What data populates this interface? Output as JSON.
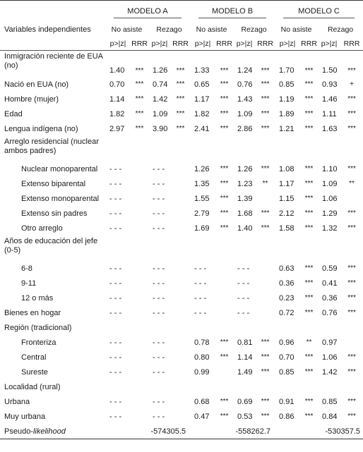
{
  "headers": {
    "models": [
      "MODELO A",
      "MODELO B",
      "MODELO C"
    ],
    "variables": "Variables independientes",
    "outcomes": [
      "No asiste",
      "Rezago"
    ],
    "stats": [
      "p>|z|",
      "RRR"
    ]
  },
  "rows": [
    {
      "label": "Inmigración reciente de EUA (no)",
      "type": "tall",
      "cells": [
        "1.40",
        "***",
        "1.26",
        "***",
        "1.33",
        "***",
        "1.24",
        "***",
        "1.70",
        "***",
        "1.50",
        "***"
      ]
    },
    {
      "label": "Nació en EUA (no)",
      "cells": [
        "0.70",
        "***",
        "0.74",
        "***",
        "0.65",
        "***",
        "0.76",
        "***",
        "0.85",
        "***",
        "0.93",
        "+"
      ]
    },
    {
      "label": "Hombre (mujer)",
      "cells": [
        "1.14",
        "***",
        "1.42",
        "***",
        "1.17",
        "***",
        "1.43",
        "***",
        "1.19",
        "***",
        "1.46",
        "***"
      ]
    },
    {
      "label": "Edad",
      "cells": [
        "1.82",
        "***",
        "1.09",
        "***",
        "1.82",
        "***",
        "1.09",
        "***",
        "1.89",
        "***",
        "1.11",
        "***"
      ]
    },
    {
      "label": "Lengua indígena (no)",
      "cells": [
        "2.97",
        "***",
        "3.90",
        "***",
        "2.41",
        "***",
        "2.86",
        "***",
        "1.21",
        "***",
        "1.63",
        "***"
      ]
    },
    {
      "label": "Arreglo residencial (nuclear ambos padres)",
      "type": "cat",
      "cells": []
    },
    {
      "label": "Nuclear monoparental",
      "indent": true,
      "cells": [
        "- - -",
        "",
        "- - -",
        "",
        "1.26",
        "***",
        "1.26",
        "***",
        "1.08",
        "***",
        "1.10",
        "***"
      ]
    },
    {
      "label": "Extenso biparental",
      "indent": true,
      "cells": [
        "- - -",
        "",
        "- - -",
        "",
        "1.35",
        "***",
        "1.23",
        "**",
        "1.17",
        "***",
        "1.09",
        "**"
      ]
    },
    {
      "label": "Extenso monoparental",
      "indent": true,
      "cells": [
        "- - -",
        "",
        "- - -",
        "",
        "1.55",
        "***",
        "1.39",
        "",
        "1.15",
        "***",
        "1.06",
        ""
      ]
    },
    {
      "label": "Extenso sin padres",
      "indent": true,
      "cells": [
        "- - -",
        "",
        "- - -",
        "",
        "2.79",
        "***",
        "1.68",
        "***",
        "2.12",
        "***",
        "1.29",
        "***"
      ]
    },
    {
      "label": "Otro arreglo",
      "indent": true,
      "cells": [
        "- - -",
        "",
        "- - -",
        "",
        "1.69",
        "***",
        "1.40",
        "***",
        "1.58",
        "***",
        "1.32",
        "***"
      ]
    },
    {
      "label": "Años de educación del jefe (0-5)",
      "type": "cat",
      "cells": []
    },
    {
      "label": "6-8",
      "indent": true,
      "cells": [
        "- - -",
        "",
        "- - -",
        "",
        "- - -",
        "",
        "- - -",
        "",
        "0.63",
        "***",
        "0.59",
        "***"
      ]
    },
    {
      "label": "9-11",
      "indent": true,
      "cells": [
        "- - -",
        "",
        "- - -",
        "",
        "- - -",
        "",
        "- - -",
        "",
        "0.36",
        "***",
        "0.41",
        "***"
      ]
    },
    {
      "label": "12 o más",
      "indent": true,
      "cells": [
        "- - -",
        "",
        "- - -",
        "",
        "- - -",
        "",
        "- - -",
        "",
        "0.23",
        "***",
        "0.36",
        "***"
      ]
    },
    {
      "label": "Bienes en hogar",
      "cells": [
        "- - -",
        "",
        "- - -",
        "",
        "- - -",
        "",
        "- - -",
        "",
        "0.72",
        "***",
        "0.76",
        "***"
      ]
    },
    {
      "label": "Región (tradicional)",
      "cells": []
    },
    {
      "label": "Fronteriza",
      "indent": true,
      "cells": [
        "- - -",
        "",
        "- - -",
        "",
        "0.78",
        "***",
        "0.81",
        "***",
        "0.96",
        "**",
        "0.97",
        ""
      ]
    },
    {
      "label": "Central",
      "indent": true,
      "cells": [
        "- - -",
        "",
        "- - -",
        "",
        "0.80",
        "***",
        "1.14",
        "***",
        "0.70",
        "***",
        "1.06",
        "***"
      ]
    },
    {
      "label": "Sureste",
      "indent": true,
      "cells": [
        "- - -",
        "",
        "- - -",
        "",
        "0.99",
        "",
        "1.49",
        "***",
        "0.85",
        "***",
        "1.42",
        "***"
      ]
    },
    {
      "label": "Localidad (rural)",
      "cells": []
    },
    {
      "label": "Urbana",
      "cells": [
        "- - -",
        "",
        "- - -",
        "",
        "0.68",
        "***",
        "0.69",
        "***",
        "0.91",
        "***",
        "0.85",
        "***"
      ]
    },
    {
      "label": "Muy urbana",
      "cells": [
        "- - -",
        "",
        "- - -",
        "",
        "0.47",
        "***",
        "0.53",
        "***",
        "0.86",
        "***",
        "0.84",
        "***"
      ]
    },
    {
      "label_prefix": "Pseudo-",
      "label_italic": "likelihood",
      "type": "last",
      "summary": [
        "-574305.5",
        "-558262.7",
        "-530357.5"
      ]
    }
  ]
}
